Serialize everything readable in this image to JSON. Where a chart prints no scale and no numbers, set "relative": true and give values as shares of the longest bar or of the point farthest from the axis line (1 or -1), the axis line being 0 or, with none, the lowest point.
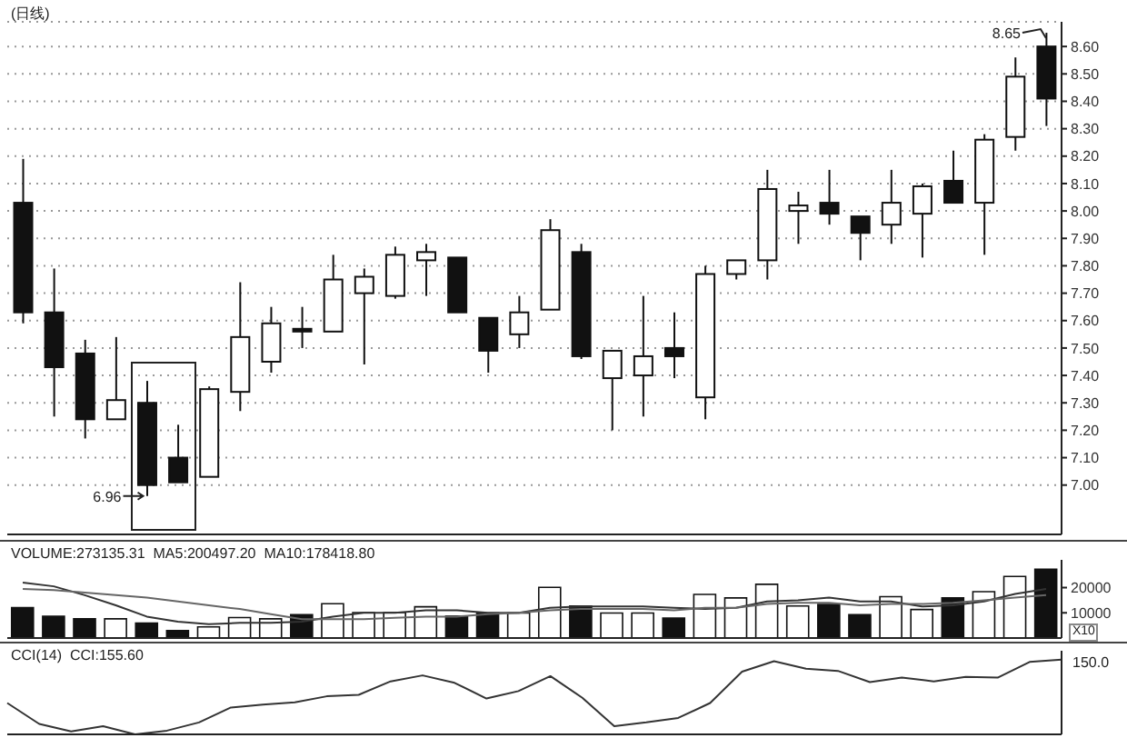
{
  "chart_data": [
    {
      "type": "candlestick",
      "title": "(日线)",
      "categories": [
        null,
        null,
        null,
        null,
        null,
        null,
        null,
        null,
        null,
        null,
        null,
        null,
        null,
        null,
        null,
        null,
        null,
        null,
        null,
        null,
        null,
        null,
        null,
        null,
        null,
        null,
        null,
        null,
        null,
        null,
        null,
        null,
        null,
        null
      ],
      "ohlc": [
        [
          8.03,
          8.19,
          7.59,
          7.63
        ],
        [
          7.63,
          7.79,
          7.25,
          7.43
        ],
        [
          7.48,
          7.53,
          7.17,
          7.24
        ],
        [
          7.24,
          7.54,
          7.24,
          7.31
        ],
        [
          7.3,
          7.38,
          6.96,
          7.0
        ],
        [
          7.1,
          7.22,
          7.01,
          7.01
        ],
        [
          7.03,
          7.36,
          7.03,
          7.35
        ],
        [
          7.34,
          7.74,
          7.27,
          7.54
        ],
        [
          7.45,
          7.65,
          7.41,
          7.59
        ],
        [
          7.57,
          7.65,
          7.5,
          7.56
        ],
        [
          7.56,
          7.84,
          7.56,
          7.75
        ],
        [
          7.7,
          7.79,
          7.44,
          7.76
        ],
        [
          7.69,
          7.87,
          7.68,
          7.84
        ],
        [
          7.82,
          7.88,
          7.69,
          7.85
        ],
        [
          7.83,
          7.83,
          7.63,
          7.63
        ],
        [
          7.61,
          7.61,
          7.41,
          7.49
        ],
        [
          7.55,
          7.69,
          7.5,
          7.63
        ],
        [
          7.64,
          7.97,
          7.64,
          7.93
        ],
        [
          7.85,
          7.88,
          7.46,
          7.47
        ],
        [
          7.39,
          7.49,
          7.2,
          7.49
        ],
        [
          7.4,
          7.69,
          7.25,
          7.47
        ],
        [
          7.5,
          7.63,
          7.39,
          7.47
        ],
        [
          7.32,
          7.8,
          7.24,
          7.77
        ],
        [
          7.77,
          7.82,
          7.75,
          7.82
        ],
        [
          7.82,
          8.15,
          7.75,
          8.08
        ],
        [
          8.0,
          8.07,
          7.88,
          8.02
        ],
        [
          8.03,
          8.15,
          7.95,
          7.99
        ],
        [
          7.98,
          7.98,
          7.82,
          7.92
        ],
        [
          7.95,
          8.15,
          7.88,
          8.03
        ],
        [
          7.99,
          8.1,
          7.83,
          8.09
        ],
        [
          8.11,
          8.22,
          8.03,
          8.03
        ],
        [
          8.03,
          8.28,
          7.84,
          8.26
        ],
        [
          8.27,
          8.56,
          8.22,
          8.49
        ],
        [
          8.6,
          8.65,
          8.31,
          8.41
        ]
      ],
      "colors": [
        "#111111",
        "#111111",
        "#111111",
        "#ffffff",
        "#111111",
        "#111111",
        "#ffffff",
        "#ffffff",
        "#ffffff",
        "#111111",
        "#ffffff",
        "#ffffff",
        "#ffffff",
        "#ffffff",
        "#111111",
        "#111111",
        "#ffffff",
        "#ffffff",
        "#111111",
        "#ffffff",
        "#ffffff",
        "#111111",
        "#ffffff",
        "#ffffff",
        "#ffffff",
        "#ffffff",
        "#111111",
        "#111111",
        "#ffffff",
        "#ffffff",
        "#111111",
        "#ffffff",
        "#ffffff",
        "#111111"
      ],
      "ylim": [
        6.82,
        8.69
      ],
      "yticks": [
        {
          "value": 7,
          "label": "7.00"
        },
        {
          "value": 7.1,
          "label": "7.10"
        },
        {
          "value": 7.2,
          "label": "7.20"
        },
        {
          "value": 7.3,
          "label": "7.30"
        },
        {
          "value": 7.4,
          "label": "7.40"
        },
        {
          "value": 7.5,
          "label": "7.50"
        },
        {
          "value": 7.6,
          "label": "7.60"
        },
        {
          "value": 7.7,
          "label": "7.70"
        },
        {
          "value": 7.8,
          "label": "7.80"
        },
        {
          "value": 7.9,
          "label": "7.90"
        },
        {
          "value": 8,
          "label": "8.00"
        },
        {
          "value": 8.1,
          "label": "8.10"
        },
        {
          "value": 8.2,
          "label": "8.20"
        },
        {
          "value": 8.3,
          "label": "8.30"
        },
        {
          "value": 8.4,
          "label": "8.40"
        },
        {
          "value": 8.5,
          "label": "8.50"
        },
        {
          "value": 8.6,
          "label": "8.60"
        }
      ],
      "grid": "y",
      "tick_labels": "y",
      "annotations": [
        "6.96",
        "8.65"
      ]
    },
    {
      "type": "bar",
      "title": "VOLUME:273135.31  MA5:200497.20  MA10:178418.80",
      "ylabel": "X10",
      "categories": [
        null,
        null,
        null,
        null,
        null,
        null,
        null,
        null,
        null,
        null,
        null,
        null,
        null,
        null,
        null,
        null,
        null,
        null,
        null,
        null,
        null,
        null,
        null,
        null,
        null,
        null,
        null,
        null,
        null,
        null,
        null,
        null,
        null,
        null
      ],
      "series": [
        {
          "type": "bar",
          "values": [
            12100,
            8600,
            7600,
            7600,
            5900,
            3000,
            4400,
            8100,
            7600,
            9300,
            13600,
            10100,
            10100,
            12400,
            8700,
            9900,
            9900,
            20100,
            12700,
            9900,
            9900,
            7900,
            17300,
            15900,
            21300,
            12700,
            13300,
            9300,
            16400,
            11300,
            15900,
            18400,
            24400,
            27300
          ],
          "colors": [
            "#111111",
            "#111111",
            "#111111",
            "#ffffff",
            "#111111",
            "#111111",
            "#ffffff",
            "#ffffff",
            "#ffffff",
            "#111111",
            "#ffffff",
            "#ffffff",
            "#ffffff",
            "#ffffff",
            "#111111",
            "#111111",
            "#ffffff",
            "#ffffff",
            "#111111",
            "#ffffff",
            "#ffffff",
            "#111111",
            "#ffffff",
            "#ffffff",
            "#ffffff",
            "#ffffff",
            "#111111",
            "#111111",
            "#ffffff",
            "#ffffff",
            "#111111",
            "#ffffff",
            "#ffffff",
            "#111111"
          ]
        },
        {
          "type": "line",
          "color": "#333333",
          "values": [
            22000,
            20500,
            17000,
            13000,
            8500,
            6500,
            5500,
            6000,
            6000,
            6500,
            8500,
            10000,
            10000,
            11000,
            11000,
            10000,
            10000,
            12000,
            12500,
            12500,
            12500,
            12000,
            11500,
            12000,
            14500,
            15000,
            16000,
            14500,
            14500,
            12500,
            13000,
            14500,
            17500,
            19500
          ]
        },
        {
          "type": "line",
          "color": "#666666",
          "values": [
            19500,
            19000,
            18000,
            17000,
            16000,
            14500,
            13000,
            11500,
            9500,
            7500,
            7500,
            7500,
            8000,
            8500,
            8500,
            9500,
            10000,
            11000,
            11500,
            11500,
            11500,
            11000,
            12000,
            12000,
            13500,
            14000,
            14000,
            13000,
            13500,
            13500,
            14000,
            15000,
            16000,
            17000
          ]
        }
      ],
      "ylim": [
        0,
        31000
      ],
      "yticks": [
        10000,
        20000
      ],
      "tick_labels": "y"
    },
    {
      "type": "line",
      "title": "CCI(14)  CCI:155.60",
      "categories": [
        null,
        null,
        null,
        null,
        null,
        null,
        null,
        null,
        null,
        null,
        null,
        null,
        null,
        null,
        null,
        null,
        null,
        null,
        null,
        null,
        null,
        null,
        null,
        null,
        null,
        null,
        null,
        null,
        null,
        null,
        null,
        null,
        null,
        null
      ],
      "series": [
        {
          "color": "#333333",
          "values": [
            0.42,
            0.14,
            0.04,
            0.11,
            0,
            0.05,
            0.16,
            0.36,
            0.4,
            0.43,
            0.51,
            0.53,
            0.71,
            0.79,
            0.69,
            0.48,
            0.58,
            0.78,
            0.49,
            0.11,
            0.16,
            0.22,
            0.42,
            0.84,
            0.98,
            0.88,
            0.85,
            0.7,
            0.76,
            0.71,
            0.77,
            0.76,
            0.97,
            1
          ]
        }
      ],
      "relative": true,
      "tick_labels": false,
      "annotations": [
        "150.0"
      ]
    }
  ]
}
